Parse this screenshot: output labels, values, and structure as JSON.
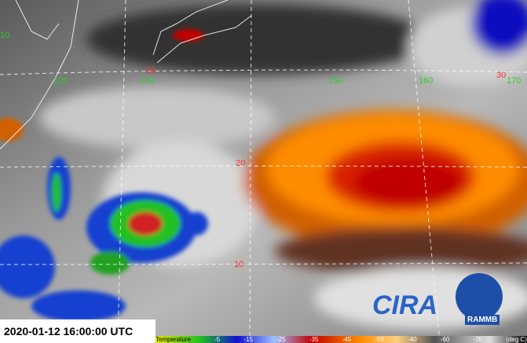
{
  "timestamp": "2020-01-12 16:00:00 UTC",
  "grid": {
    "longitude_labels": [
      "10",
      "120",
      "130",
      "150",
      "160",
      "170"
    ],
    "latitude_labels": [
      "30",
      "20",
      "10",
      "30"
    ]
  },
  "colorbar": {
    "title": "Temperature",
    "labels": [
      "-5",
      "-15",
      "-25",
      "-35",
      "-45",
      "-50",
      "-40",
      "-60",
      "-70",
      "(deg C)"
    ]
  },
  "logos": [
    "CIRA",
    "RAMMB"
  ]
}
